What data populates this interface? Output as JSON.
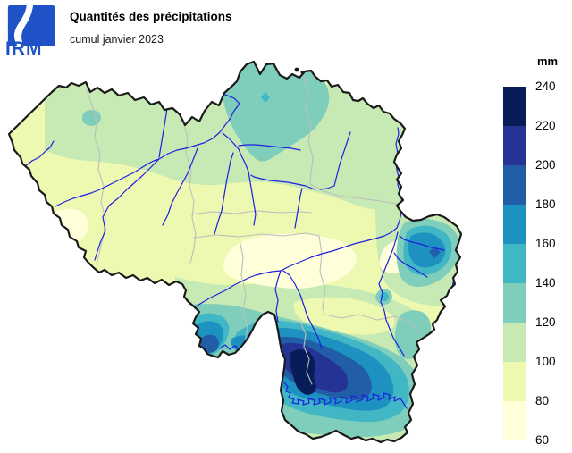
{
  "header": {
    "logo_text": "IRM",
    "title": "Quantités des précipitations",
    "subtitle": "cumul janvier 2023"
  },
  "legend": {
    "unit": "mm",
    "boundary_labels": [
      "240",
      "220",
      "200",
      "180",
      "160",
      "140",
      "120",
      "100",
      "80",
      "60"
    ],
    "scale": {
      "min_mm": 60,
      "max_mm": 240,
      "step_mm": 20
    },
    "bands": [
      {
        "range_mm": "220-240",
        "color": "#081D58"
      },
      {
        "range_mm": "200-220",
        "color": "#253494"
      },
      {
        "range_mm": "180-200",
        "color": "#225EA8"
      },
      {
        "range_mm": "160-180",
        "color": "#1D91C0"
      },
      {
        "range_mm": "140-160",
        "color": "#41B6C4"
      },
      {
        "range_mm": "120-140",
        "color": "#7FCDBB"
      },
      {
        "range_mm": "100-120",
        "color": "#C7E9B4"
      },
      {
        "range_mm": "80-100",
        "color": "#EDF8B1"
      },
      {
        "range_mm": "60-80",
        "color": "#FFFFD9"
      }
    ]
  },
  "map": {
    "region": "Belgique",
    "variable": "cumul des précipitations",
    "period": "janvier 2023",
    "unit": "mm",
    "outline_color": "#1A1A1A",
    "river_color": "#1F1FE0",
    "province_border_color": "#BDBDBD",
    "logo_color": "#1E52C6",
    "background_color": "#FFFFFF"
  }
}
